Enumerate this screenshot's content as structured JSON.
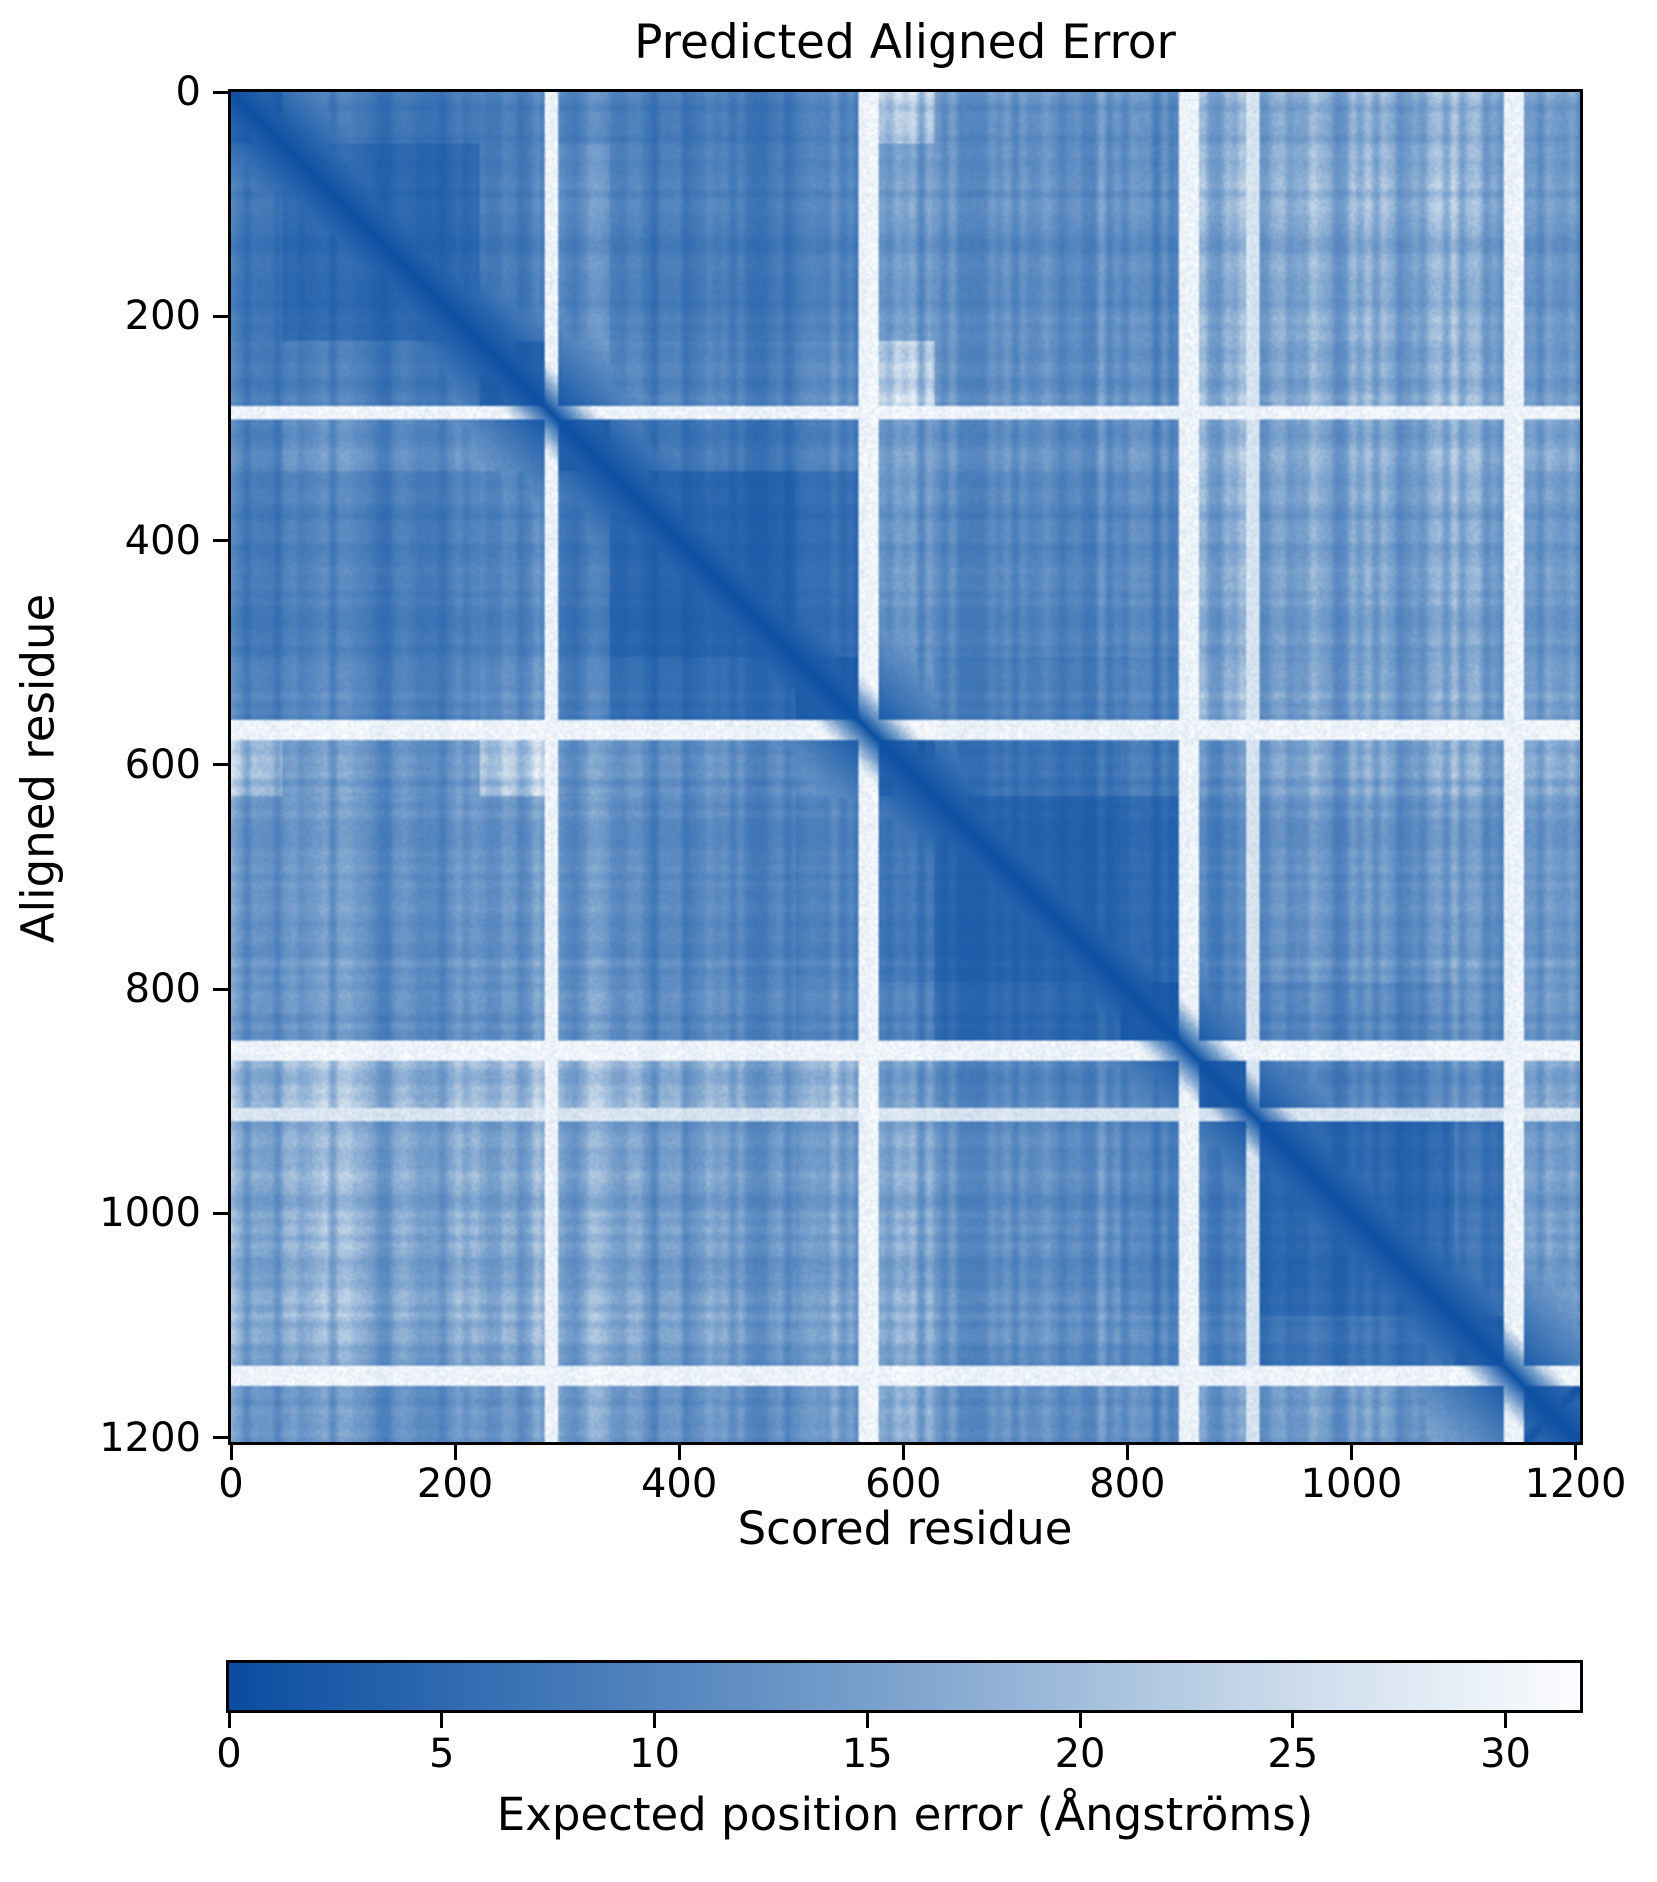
{
  "title": "Predicted Aligned Error",
  "x_axis": {
    "label": "Scored residue",
    "ticks": [
      0,
      200,
      400,
      600,
      800,
      1000,
      1200
    ]
  },
  "y_axis": {
    "label": "Aligned residue",
    "ticks": [
      0,
      200,
      400,
      600,
      800,
      1000,
      1200
    ]
  },
  "colorbar": {
    "label": "Expected position error (Ångströms)",
    "ticks": [
      0,
      5,
      10,
      15,
      20,
      25,
      30
    ],
    "vmin": 0,
    "vmax": 31.75
  },
  "colors": {
    "text": "#000000",
    "background": "#ffffff",
    "spine": "#000000"
  },
  "chart_data": {
    "type": "heatmap",
    "title": "Predicted Aligned Error",
    "xlabel": "Scored residue",
    "ylabel": "Aligned residue",
    "value_label": "Expected position error (Ångströms)",
    "xlim": [
      0,
      1204
    ],
    "ylim": [
      1204,
      0
    ],
    "sequence_length": 1204,
    "vmin": 0,
    "vmax": 31.75,
    "grid": false,
    "legend_position": "bottom-colorbar",
    "colormap": {
      "name": "Blues_r",
      "stops": [
        [
          0.0,
          "#0a4da1"
        ],
        [
          0.25,
          "#4379b8"
        ],
        [
          0.5,
          "#7ea4ce"
        ],
        [
          0.75,
          "#c3d5e8"
        ],
        [
          1.0,
          "#fcfdff"
        ]
      ]
    },
    "baseline_pae": 19,
    "diagonal_pae": 0.5,
    "domains": [
      {
        "id": 0,
        "start": 0,
        "end": 46,
        "intra_pae": 3.5
      },
      {
        "id": 1,
        "start": 46,
        "end": 222,
        "intra_pae": 4.5
      },
      {
        "id": 2,
        "start": 222,
        "end": 281,
        "intra_pae": 3.0
      },
      {
        "id": 3,
        "start": 293,
        "end": 339,
        "intra_pae": 3.0
      },
      {
        "id": 4,
        "start": 339,
        "end": 505,
        "intra_pae": 4.5
      },
      {
        "id": 5,
        "start": 505,
        "end": 560,
        "intra_pae": 3.0
      },
      {
        "id": 6,
        "start": 578,
        "end": 628,
        "intra_pae": 3.0
      },
      {
        "id": 7,
        "start": 628,
        "end": 795,
        "intra_pae": 4.5
      },
      {
        "id": 8,
        "start": 795,
        "end": 846,
        "intra_pae": 3.0
      },
      {
        "id": 9,
        "start": 865,
        "end": 906,
        "intra_pae": 3.0
      },
      {
        "id": 10,
        "start": 918,
        "end": 1092,
        "intra_pae": 4.5
      },
      {
        "id": 11,
        "start": 1092,
        "end": 1136,
        "intra_pae": 3.0
      },
      {
        "id": 12,
        "start": 1155,
        "end": 1204,
        "intra_pae": 14.0,
        "antidiagonal": true
      }
    ],
    "linkers": [
      {
        "start": 281,
        "end": 293,
        "pae": 30.0
      },
      {
        "start": 560,
        "end": 578,
        "pae": 30.0
      },
      {
        "start": 846,
        "end": 865,
        "pae": 30.0
      },
      {
        "start": 906,
        "end": 918,
        "pae": 27.0
      },
      {
        "start": 1136,
        "end": 1155,
        "pae": 30.0
      }
    ],
    "inter_domain_pae": {
      "0-1": 7.5,
      "0-2": 8.5,
      "0-3": 10,
      "0-4": 9,
      "0-5": 10,
      "0-7": 14,
      "0-8": 14,
      "0-10": 16,
      "0-11": 16,
      "0-12": 13,
      "1-2": 8,
      "1-3": 11,
      "1-4": 9,
      "1-5": 9.5,
      "1-6": 12,
      "1-7": 13,
      "1-8": 13,
      "1-10": 16,
      "1-11": 15,
      "1-12": 12,
      "2-3": 13,
      "2-4": 10,
      "2-5": 11,
      "2-7": 13,
      "2-8": 13,
      "2-10": 15,
      "2-11": 15,
      "2-12": 12,
      "3-4": 8,
      "3-5": 9,
      "3-6": 12,
      "3-7": 13,
      "3-8": 14,
      "3-10": 15,
      "3-11": 15,
      "3-12": 14,
      "4-5": 6,
      "4-6": 12,
      "4-7": 12,
      "4-8": 13,
      "4-10": 15,
      "4-11": 15,
      "4-12": 13,
      "5-6": 11,
      "5-7": 10,
      "5-8": 11,
      "5-10": 14,
      "5-11": 14,
      "5-12": 13,
      "6-7": 7,
      "6-8": 9,
      "6-9": 13,
      "6-10": 14,
      "6-11": 14,
      "6-12": 14,
      "7-8": 6,
      "7-9": 12,
      "7-10": 13,
      "7-11": 13,
      "7-12": 13,
      "8-9": 11,
      "8-10": 11,
      "8-11": 12,
      "8-12": 13,
      "9-10": 10,
      "9-11": 11,
      "9-12": 15,
      "10-11": 6.5,
      "10-12": 13,
      "11-12": 12
    },
    "stripe_noise": {
      "col_base": 0.45,
      "col_amp": 1.1,
      "row_base": 0.72,
      "row_amp": 0.52,
      "scales": [
        7,
        23,
        89
      ],
      "weights": [
        0.45,
        0.35,
        0.2
      ],
      "seed": 20240613
    }
  }
}
